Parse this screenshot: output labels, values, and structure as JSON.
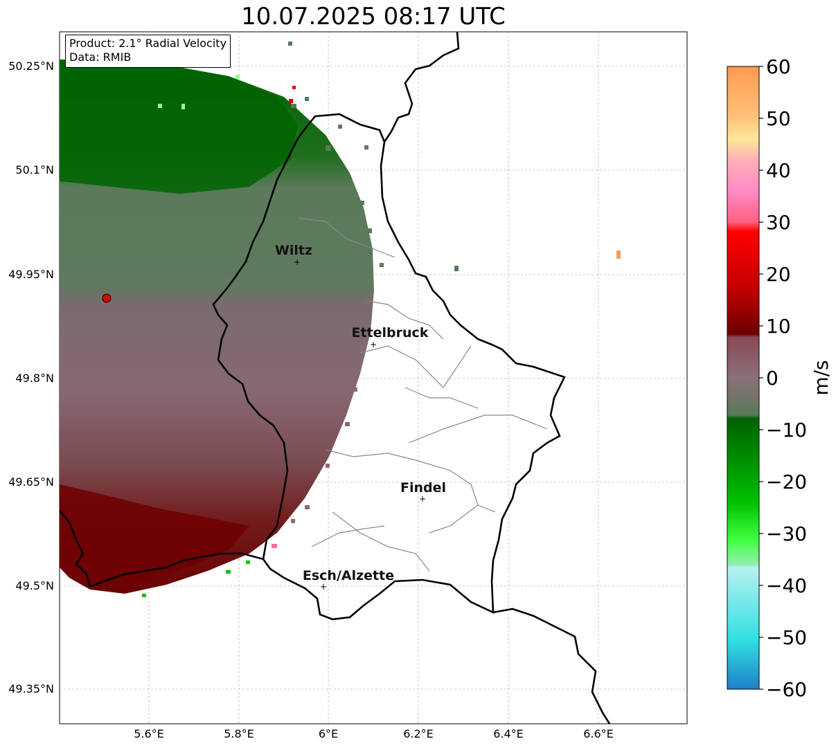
{
  "title": "10.07.2025 08:17 UTC",
  "info": {
    "product": "Product: 2.1° Radial Velocity",
    "data": "Data: RMIB"
  },
  "axes": {
    "lat_ticks": [
      "50.25°N",
      "50.1°N",
      "49.95°N",
      "49.8°N",
      "49.65°N",
      "49.5°N",
      "49.35°N"
    ],
    "lon_ticks": [
      "5.6°E",
      "5.8°E",
      "6°E",
      "6.2°E",
      "6.4°E",
      "6.6°E"
    ]
  },
  "cities": [
    {
      "name": "Wiltz",
      "lon": 5.933,
      "lat": 49.966
    },
    {
      "name": "Ettelbruck",
      "lon": 6.1,
      "lat": 49.848
    },
    {
      "name": "Findel",
      "lon": 6.21,
      "lat": 49.626
    },
    {
      "name": "Esch/Alzette",
      "lon": 5.985,
      "lat": 49.497
    }
  ],
  "radar_site": {
    "lon": 5.505,
    "lat": 49.914
  },
  "colorbar": {
    "label": "m/s",
    "tick_labels": [
      "60",
      "50",
      "40",
      "30",
      "20",
      "10",
      "0",
      "−10",
      "−20",
      "−30",
      "−40",
      "−50",
      "−60"
    ],
    "min": -60,
    "max": 60
  },
  "colors": {
    "approaching_dark": "#006400",
    "approaching_mid": "#5a7a5a",
    "receding_mid": "#8a6a72",
    "receding_dark": "#6e0f0f",
    "radar_site": "#e00000"
  }
}
